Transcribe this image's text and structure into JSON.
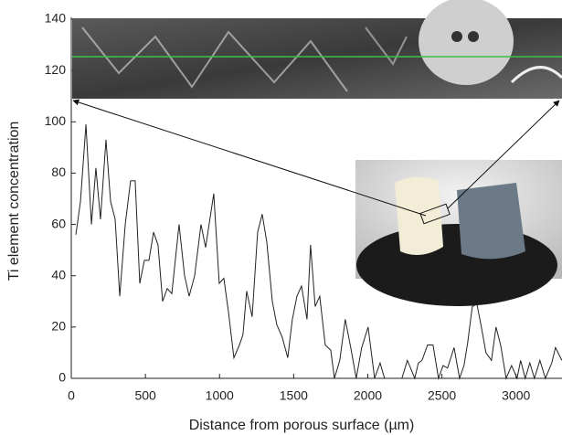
{
  "chart_data": {
    "type": "line",
    "x_label": "Distance from porous surface (µm)",
    "y_label": "Ti element concentration",
    "x": [
      31,
      62,
      99,
      136,
      166,
      197,
      234,
      265,
      296,
      327,
      364,
      400,
      431,
      462,
      493,
      524,
      555,
      585,
      616,
      647,
      678,
      727,
      764,
      795,
      832,
      875,
      906,
      961,
      998,
      1029,
      1060,
      1097,
      1134,
      1158,
      1183,
      1220,
      1257,
      1288,
      1319,
      1356,
      1386,
      1423,
      1460,
      1491,
      1522,
      1553,
      1590,
      1614,
      1645,
      1676,
      1713,
      1750,
      1775,
      1811,
      1848,
      1885,
      1922,
      1959,
      2002,
      2046,
      2083,
      2113,
      2230,
      2267,
      2317,
      2341,
      2366,
      2403,
      2440,
      2477,
      2508,
      2538,
      2582,
      2619,
      2649,
      2674,
      2705,
      2736,
      2766,
      2797,
      2834,
      2865,
      2896,
      2933,
      2970,
      3007,
      3031,
      3062,
      3093,
      3124,
      3161,
      3198,
      3241,
      3266,
      3309
    ],
    "series": [
      {
        "color": "#222222",
        "values": [
          56,
          69,
          99,
          60,
          82,
          62,
          93,
          69,
          62,
          32,
          60,
          77,
          77,
          37,
          46,
          46,
          57,
          52,
          30,
          35,
          33,
          60,
          40,
          32,
          40,
          60,
          51,
          72,
          37,
          39,
          26,
          8,
          13,
          17,
          34,
          24,
          57,
          64,
          53,
          30,
          21,
          16,
          8,
          23,
          32,
          36,
          23,
          52,
          28,
          32,
          13,
          11,
          0,
          7,
          23,
          12,
          0,
          12,
          20,
          0,
          6,
          0,
          0,
          7,
          0,
          6,
          7,
          13,
          13,
          0,
          5,
          4,
          12,
          0,
          5,
          14,
          28,
          29,
          20,
          10,
          7,
          20,
          13,
          0,
          5,
          0,
          7,
          0,
          6,
          0,
          7,
          0,
          6,
          12,
          7
        ]
      }
    ],
    "xlim": [
      0,
      3310
    ],
    "ylim": [
      0,
      140
    ],
    "xticks": [
      0,
      500,
      1000,
      1500,
      2000,
      2500,
      3000
    ],
    "yticks": [
      0,
      20,
      40,
      60,
      80,
      100,
      120,
      140
    ]
  }
}
